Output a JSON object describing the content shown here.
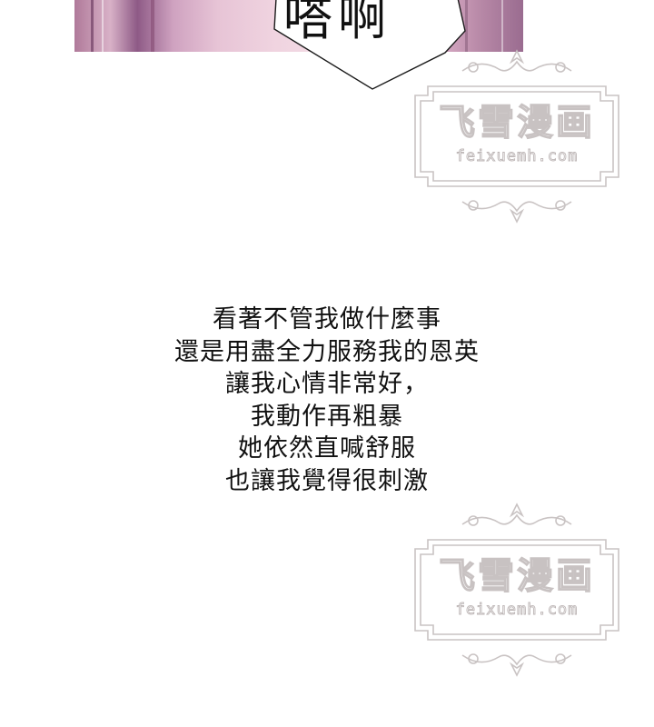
{
  "sfx_text": "嗒啊",
  "narration": {
    "lines": [
      "看著不管我做什麼事",
      "還是用盡全力服務我的恩英",
      "讓我心情非常好，",
      "我動作再粗暴",
      "她依然直喊舒服",
      "也讓我覺得很刺激"
    ]
  },
  "watermark": {
    "title": "飞雪漫画",
    "url": "feixuemh.com"
  },
  "colors": {
    "panel_pink": "#e7c4d6",
    "panel_purple": "#8e5a86",
    "text": "#111111",
    "watermark_outline": "#c8c2c2"
  }
}
